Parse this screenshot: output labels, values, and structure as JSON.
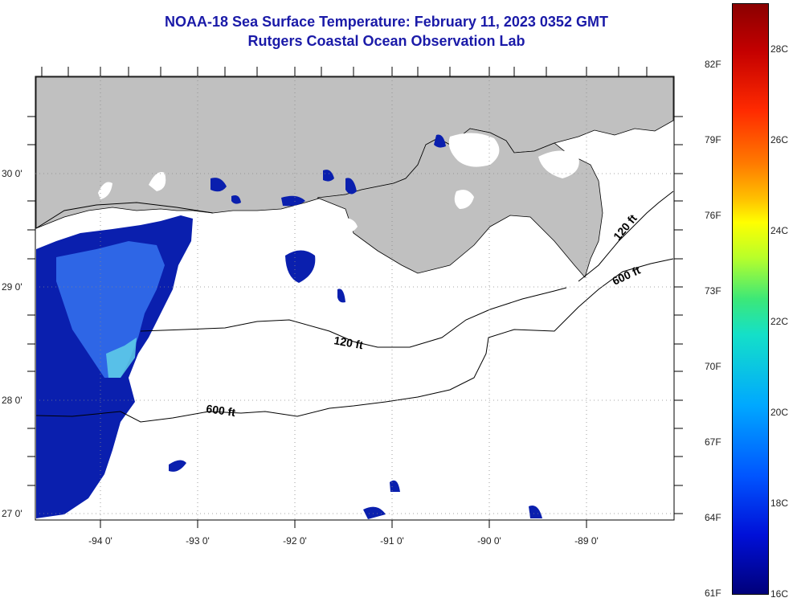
{
  "header": {
    "title": "NOAA-18 Sea Surface Temperature:  February 11, 2023 0352 GMT",
    "subtitle": "Rutgers Coastal Ocean Observation Lab"
  },
  "map": {
    "lat_labels": [
      "30 0'",
      "29 0'",
      "28 0'",
      "27 0'"
    ],
    "lon_labels": [
      "-94 0'",
      "-93 0'",
      "-92 0'",
      "-91 0'",
      "-90 0'",
      "-89 0'"
    ],
    "contours": [
      "120 ft",
      "600 ft",
      "120 ft",
      "600 ft"
    ],
    "colors": {
      "land": "#c0c0c0",
      "water_nodata": "#ffffff",
      "cold": "#0a1fae",
      "mid": "#2e66e6",
      "warm": "#5fd0e8"
    }
  },
  "colorbar": {
    "f_labels": [
      "82F",
      "79F",
      "76F",
      "73F",
      "70F",
      "67F",
      "64F",
      "61F"
    ],
    "c_labels": [
      "28C",
      "26C",
      "24C",
      "22C",
      "20C",
      "18C",
      "16C"
    ]
  }
}
